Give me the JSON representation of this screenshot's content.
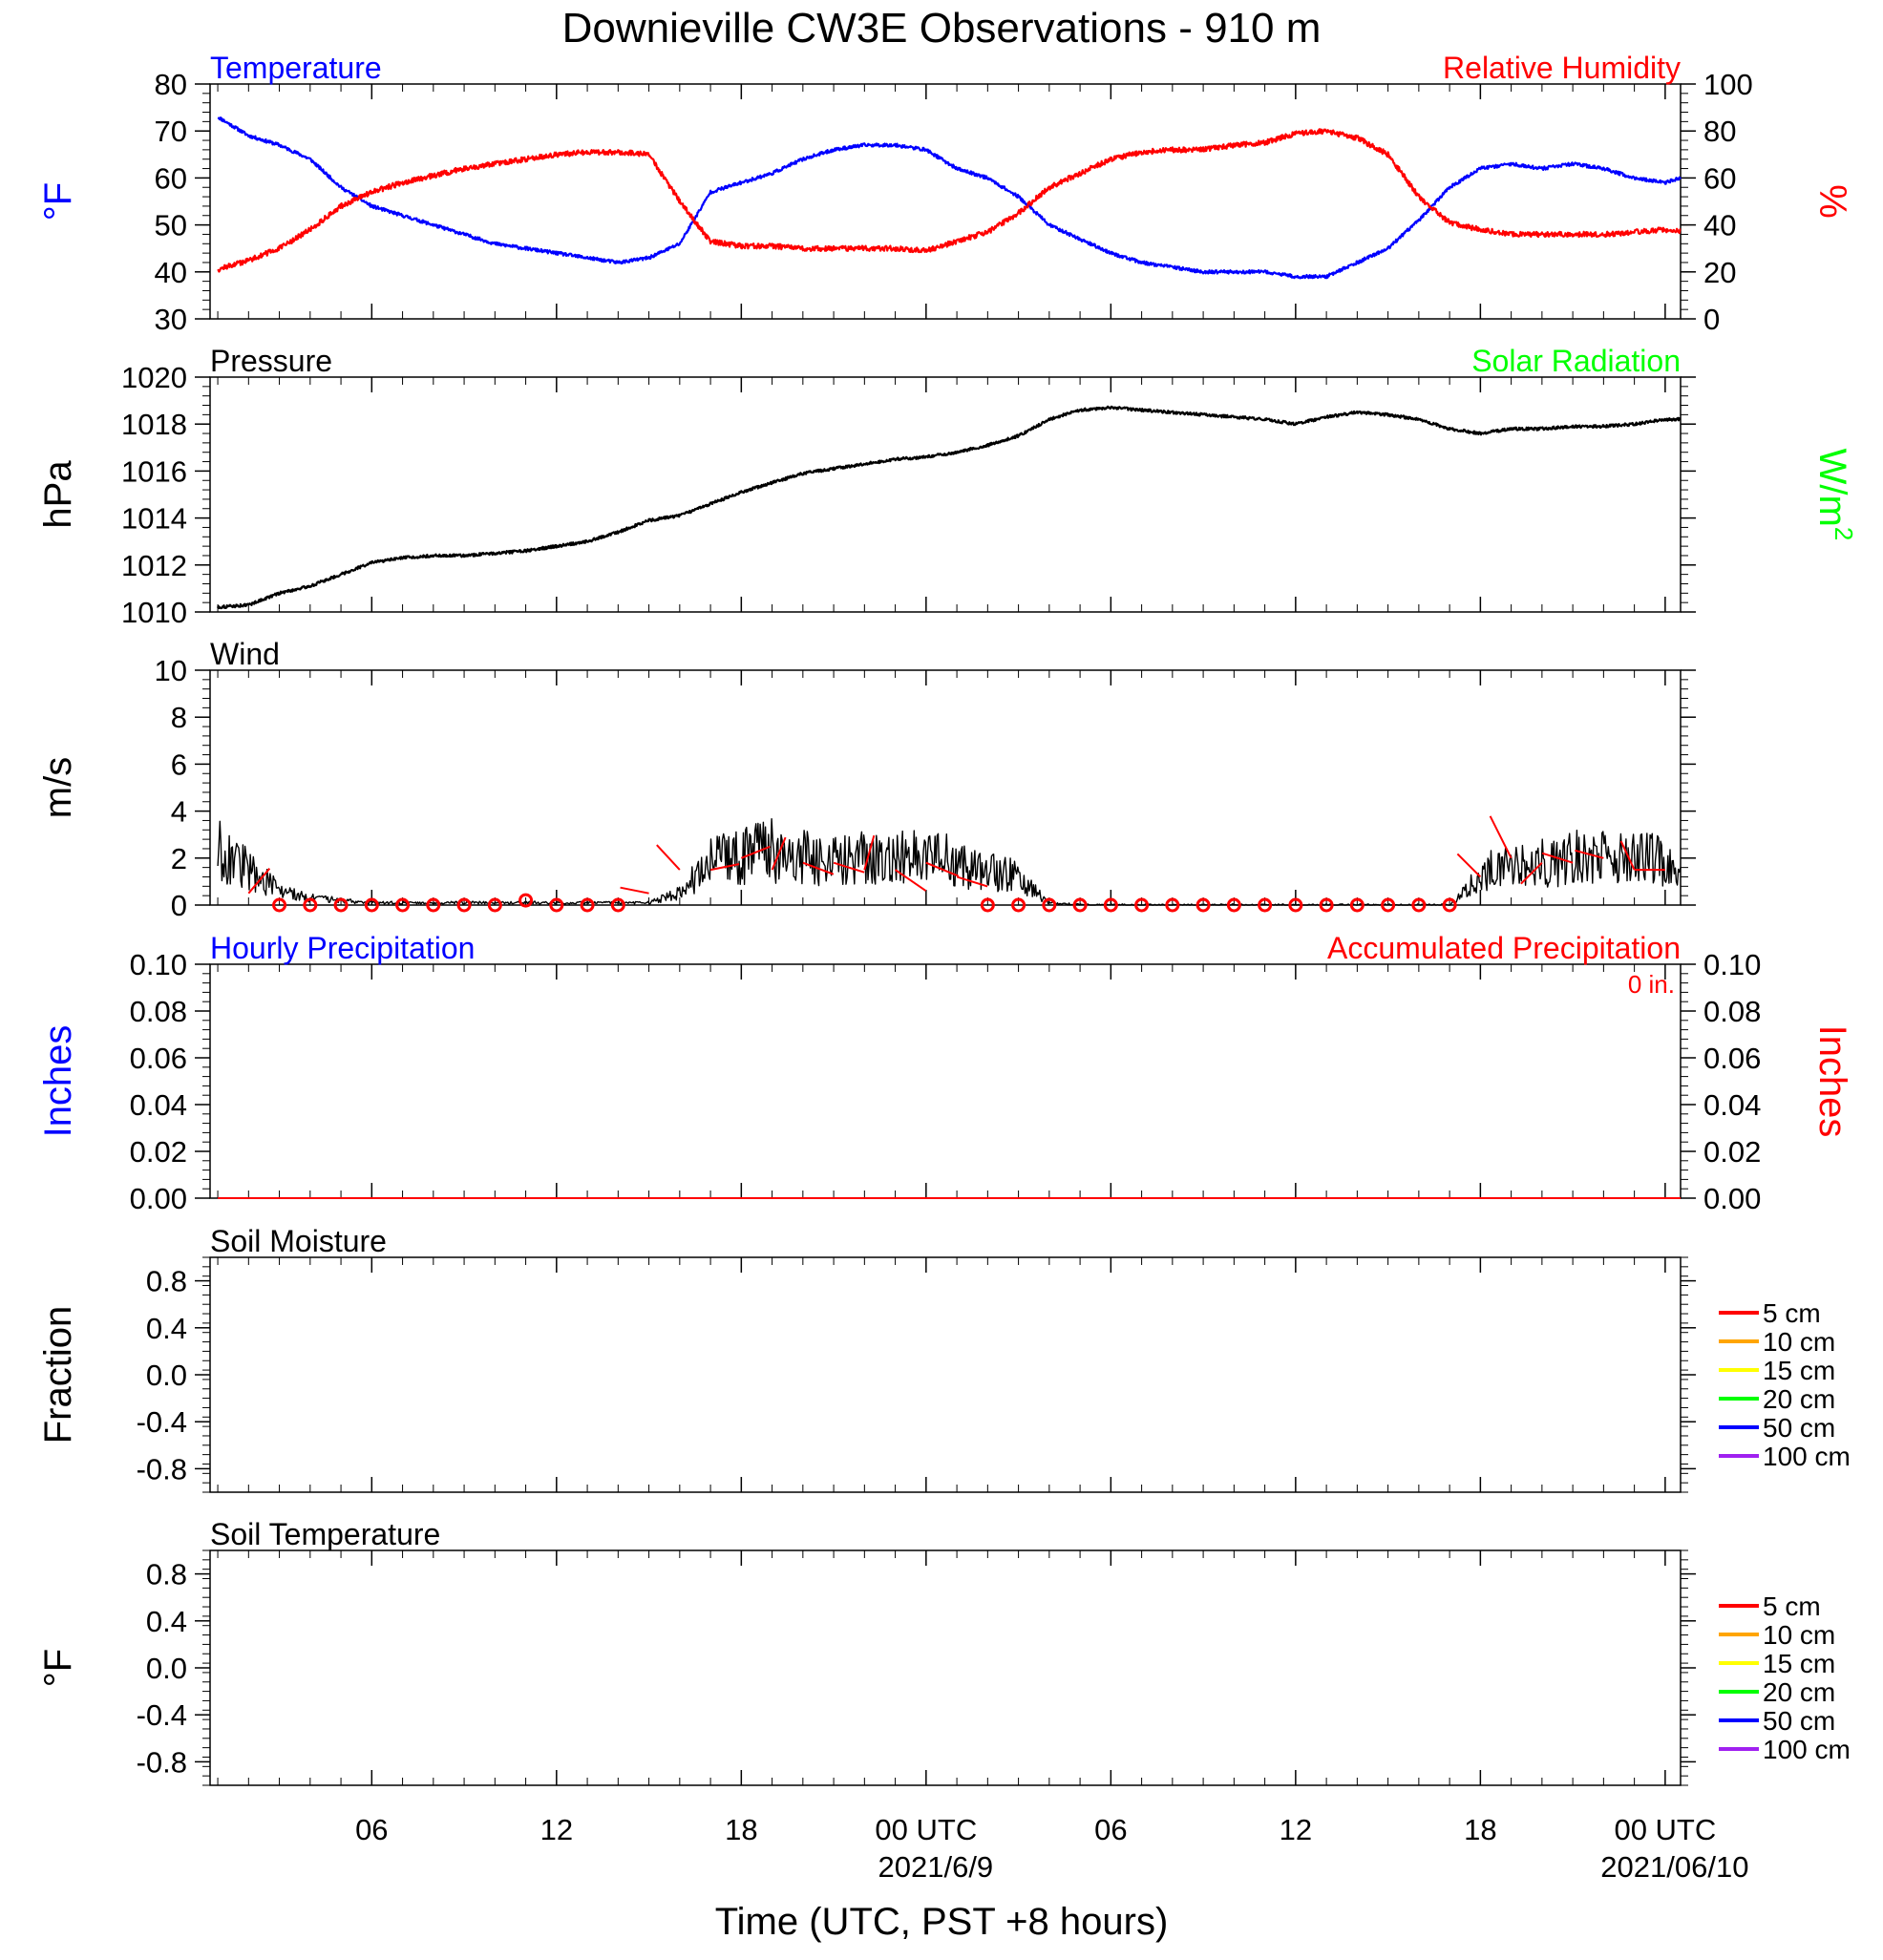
{
  "title": "Downieville CW3E Observations - 910 m",
  "xlabel": "Time (UTC, PST +8 hours)",
  "x_ticks": [
    {
      "hour": 6,
      "label": "06",
      "date": ""
    },
    {
      "hour": 12,
      "label": "12",
      "date": ""
    },
    {
      "hour": 18,
      "label": "18",
      "date": ""
    },
    {
      "hour": 24,
      "label": "00 UTC",
      "date": "2021/6/9"
    },
    {
      "hour": 30,
      "label": "06",
      "date": ""
    },
    {
      "hour": 36,
      "label": "12",
      "date": ""
    },
    {
      "hour": 42,
      "label": "18",
      "date": ""
    },
    {
      "hour": 48,
      "label": "00 UTC",
      "date": "2021/06/10"
    }
  ],
  "colors": {
    "temperature": "#0000ff",
    "humidity": "#ff0000",
    "pressure": "#000000",
    "solar": "#00ff00",
    "wind": "#000000",
    "barb": "#ff0000",
    "hourly_precip": "#0000ff",
    "accum_precip": "#ff0000"
  },
  "chart_data": [
    {
      "id": "temp_rh",
      "type": "line",
      "left_title": "Temperature",
      "right_title": "Relative Humidity",
      "ylabel": "°F",
      "ylabel_right": "%",
      "ylim": [
        30,
        80
      ],
      "ylim_right": [
        0,
        100
      ],
      "yticks": [
        "30",
        "40",
        "50",
        "60",
        "70",
        "80"
      ],
      "yticks_right": [
        "0",
        "20",
        "40",
        "60",
        "80",
        "100"
      ],
      "x_hours": [
        1,
        2,
        3,
        4,
        5,
        6,
        7,
        8,
        9,
        10,
        11,
        12,
        13,
        14,
        15,
        16,
        17,
        18,
        19,
        20,
        21,
        22,
        23,
        24,
        25,
        26,
        27,
        28,
        29,
        30,
        31,
        32,
        33,
        34,
        35,
        36,
        37,
        38,
        39,
        40,
        41,
        42,
        43,
        44,
        45,
        46,
        47,
        48,
        48.5
      ],
      "series": [
        {
          "name": "Temperature",
          "axis": "left",
          "values": [
            73,
            69,
            67,
            64,
            58,
            54,
            52,
            50,
            48,
            46,
            45,
            44,
            43,
            42,
            43,
            46,
            57,
            59,
            61,
            64,
            66,
            67,
            67,
            66,
            62,
            60,
            56,
            50,
            47,
            44,
            42,
            41,
            40,
            40,
            40,
            39,
            39,
            42,
            45,
            51,
            58,
            62,
            63,
            62,
            63,
            62,
            60,
            59,
            60
          ]
        },
        {
          "name": "Relative Humidity",
          "axis": "right",
          "values": [
            21,
            25,
            30,
            38,
            48,
            54,
            58,
            61,
            64,
            66,
            68,
            70,
            71,
            71,
            70,
            50,
            33,
            31,
            31,
            30,
            30,
            30,
            30,
            29,
            33,
            37,
            45,
            56,
            62,
            68,
            71,
            72,
            72,
            74,
            75,
            79,
            80,
            77,
            70,
            52,
            41,
            38,
            36,
            36,
            36,
            36,
            37,
            38,
            37
          ]
        }
      ]
    },
    {
      "id": "pressure",
      "type": "line",
      "left_title": "Pressure",
      "right_title": "Solar Radiation",
      "ylabel": "hPa",
      "ylabel_right": "W/m",
      "ylabel_right_sup": "2",
      "ylim": [
        1010,
        1020
      ],
      "yticks": [
        "1010",
        "1012",
        "1014",
        "1016",
        "1018",
        "1020"
      ],
      "x_hours": [
        1,
        2,
        3,
        4,
        5,
        6,
        7,
        8,
        9,
        10,
        11,
        12,
        13,
        14,
        15,
        16,
        17,
        18,
        19,
        20,
        21,
        22,
        23,
        24,
        25,
        26,
        27,
        28,
        29,
        30,
        31,
        32,
        33,
        34,
        35,
        36,
        37,
        38,
        39,
        40,
        41,
        42,
        43,
        44,
        45,
        46,
        47,
        48,
        48.5
      ],
      "series": [
        {
          "name": "Pressure",
          "axis": "left",
          "values": [
            1010.2,
            1010.3,
            1010.8,
            1011.1,
            1011.6,
            1012.1,
            1012.3,
            1012.4,
            1012.4,
            1012.5,
            1012.6,
            1012.8,
            1013.0,
            1013.4,
            1013.9,
            1014.1,
            1014.6,
            1015.1,
            1015.5,
            1015.9,
            1016.1,
            1016.3,
            1016.5,
            1016.6,
            1016.8,
            1017.1,
            1017.5,
            1018.2,
            1018.6,
            1018.7,
            1018.6,
            1018.5,
            1018.4,
            1018.3,
            1018.2,
            1018.0,
            1018.3,
            1018.5,
            1018.4,
            1018.2,
            1017.8,
            1017.6,
            1017.8,
            1017.8,
            1017.9,
            1017.9,
            1018.0,
            1018.2,
            1018.2
          ]
        }
      ]
    },
    {
      "id": "wind",
      "type": "line",
      "left_title": "Wind",
      "ylabel": "m/s",
      "ylim": [
        0,
        10
      ],
      "yticks": [
        "0",
        "2",
        "4",
        "6",
        "8",
        "10"
      ],
      "x_hours": [
        1,
        2,
        3,
        4,
        5,
        6,
        7,
        8,
        9,
        10,
        11,
        12,
        13,
        14,
        15,
        16,
        17,
        18,
        19,
        20,
        21,
        22,
        23,
        24,
        25,
        26,
        27,
        28,
        29,
        30,
        31,
        32,
        33,
        34,
        35,
        36,
        37,
        38,
        39,
        40,
        41,
        42,
        43,
        44,
        45,
        46,
        47,
        48,
        48.5
      ],
      "series": [
        {
          "name": "Wind",
          "axis": "left",
          "values": [
            2.4,
            1.5,
            0.6,
            0.3,
            0.2,
            0.1,
            0.1,
            0.1,
            0.1,
            0.1,
            0.1,
            0.1,
            0.1,
            0.1,
            0.1,
            0.5,
            1.8,
            2.1,
            2.3,
            2.0,
            1.8,
            2.0,
            2.0,
            2.1,
            1.8,
            1.5,
            1.2,
            0.1,
            0.0,
            0.0,
            0.0,
            0.0,
            0.0,
            0.0,
            0.0,
            0.0,
            0.0,
            0.0,
            0.0,
            0.0,
            0.0,
            1.2,
            2.0,
            1.8,
            2.0,
            2.1,
            2.0,
            1.9,
            1.0
          ]
        }
      ],
      "barbs": [
        {
          "hour": 2,
          "speed": 0.5,
          "dx": 22,
          "dy": -26
        },
        {
          "hour": 3,
          "speed": 0.0
        },
        {
          "hour": 4,
          "speed": 0.0
        },
        {
          "hour": 5,
          "speed": 0.0
        },
        {
          "hour": 6,
          "speed": 0.0
        },
        {
          "hour": 7,
          "speed": 0.0
        },
        {
          "hour": 8,
          "speed": 0.0
        },
        {
          "hour": 9,
          "speed": 0.0
        },
        {
          "hour": 10,
          "speed": 0.0
        },
        {
          "hour": 11,
          "speed": 0.2
        },
        {
          "hour": 12,
          "speed": 0.0
        },
        {
          "hour": 13,
          "speed": 0.0
        },
        {
          "hour": 14,
          "speed": 0.0
        },
        {
          "hour": 15,
          "speed": 0.5,
          "dx": -30,
          "dy": -6
        },
        {
          "hour": 16,
          "speed": 1.5,
          "dx": -24,
          "dy": -26
        },
        {
          "hour": 17,
          "speed": 1.5,
          "dx": 30,
          "dy": -6
        },
        {
          "hour": 18,
          "speed": 2.0,
          "dx": 30,
          "dy": -12
        },
        {
          "hour": 19,
          "speed": 1.5,
          "dx": 14,
          "dy": -34
        },
        {
          "hour": 20,
          "speed": 1.8,
          "dx": 32,
          "dy": 12
        },
        {
          "hour": 21,
          "speed": 1.8,
          "dx": 32,
          "dy": 10
        },
        {
          "hour": 22,
          "speed": 1.5,
          "dx": 10,
          "dy": -36
        },
        {
          "hour": 23,
          "speed": 1.5,
          "dx": 32,
          "dy": 22
        },
        {
          "hour": 24,
          "speed": 1.8,
          "dx": 34,
          "dy": 14
        },
        {
          "hour": 25,
          "speed": 1.2,
          "dx": 32,
          "dy": 10
        },
        {
          "hour": 26,
          "speed": 0.0
        },
        {
          "hour": 27,
          "speed": 0.0
        },
        {
          "hour": 28,
          "speed": 0.0
        },
        {
          "hour": 29,
          "speed": 0.0
        },
        {
          "hour": 30,
          "speed": 0.0
        },
        {
          "hour": 31,
          "speed": 0.0
        },
        {
          "hour": 32,
          "speed": 0.0
        },
        {
          "hour": 33,
          "speed": 0.0
        },
        {
          "hour": 34,
          "speed": 0.0
        },
        {
          "hour": 35,
          "speed": 0.0
        },
        {
          "hour": 36,
          "speed": 0.0
        },
        {
          "hour": 37,
          "speed": 0.0
        },
        {
          "hour": 38,
          "speed": 0.0
        },
        {
          "hour": 39,
          "speed": 0.0
        },
        {
          "hour": 40,
          "speed": 0.0
        },
        {
          "hour": 41,
          "speed": 0.0
        },
        {
          "hour": 42,
          "speed": 1.2,
          "dx": -24,
          "dy": -24
        },
        {
          "hour": 43,
          "speed": 2.0,
          "dx": -22,
          "dy": -44
        },
        {
          "hour": 44,
          "speed": 1.8,
          "dx": -22,
          "dy": 22
        },
        {
          "hour": 45,
          "speed": 1.8,
          "dx": -32,
          "dy": -10
        },
        {
          "hour": 46,
          "speed": 2.0,
          "dx": -30,
          "dy": -8
        },
        {
          "hour": 47,
          "speed": 1.5,
          "dx": -14,
          "dy": -30
        },
        {
          "hour": 48,
          "speed": 1.5,
          "dx": -32,
          "dy": 0
        }
      ]
    },
    {
      "id": "precip",
      "type": "line",
      "left_title": "Hourly Precipitation",
      "right_title": "Accumulated Precipitation",
      "annotation": "0 in.",
      "ylabel": "Inches",
      "ylabel_right": "Inches",
      "ylim": [
        0,
        0.1
      ],
      "yticks": [
        "0.00",
        "0.02",
        "0.04",
        "0.06",
        "0.08",
        "0.10"
      ],
      "yticks_right": [
        "0.00",
        "0.02",
        "0.04",
        "0.06",
        "0.08",
        "0.10"
      ],
      "x_hours": [
        1,
        48.5
      ],
      "series": [
        {
          "name": "Hourly Precipitation",
          "axis": "left",
          "values": [
            0,
            0
          ]
        },
        {
          "name": "Accumulated Precipitation",
          "axis": "right",
          "values": [
            0,
            0
          ]
        }
      ]
    },
    {
      "id": "soil_moisture",
      "type": "line",
      "left_title": "Soil Moisture",
      "ylabel": "Fraction",
      "ylim": [
        -1,
        1
      ],
      "yticks": [
        "-0.8",
        "-0.4",
        "0.0",
        "0.4",
        "0.8"
      ],
      "legend": [
        {
          "label": "5 cm",
          "color": "#ff0000"
        },
        {
          "label": "10 cm",
          "color": "#ffa500"
        },
        {
          "label": "15 cm",
          "color": "#ffff00"
        },
        {
          "label": "20 cm",
          "color": "#00ff00"
        },
        {
          "label": "50 cm",
          "color": "#0000ff"
        },
        {
          "label": "100 cm",
          "color": "#a020f0"
        }
      ],
      "series": []
    },
    {
      "id": "soil_temp",
      "type": "line",
      "left_title": "Soil Temperature",
      "ylabel": "°F",
      "ylim": [
        -1,
        1
      ],
      "yticks": [
        "-0.8",
        "-0.4",
        "0.0",
        "0.4",
        "0.8"
      ],
      "legend": [
        {
          "label": "5 cm",
          "color": "#ff0000"
        },
        {
          "label": "10 cm",
          "color": "#ffa500"
        },
        {
          "label": "15 cm",
          "color": "#ffff00"
        },
        {
          "label": "20 cm",
          "color": "#00ff00"
        },
        {
          "label": "50 cm",
          "color": "#0000ff"
        },
        {
          "label": "100 cm",
          "color": "#a020f0"
        }
      ],
      "series": []
    }
  ]
}
